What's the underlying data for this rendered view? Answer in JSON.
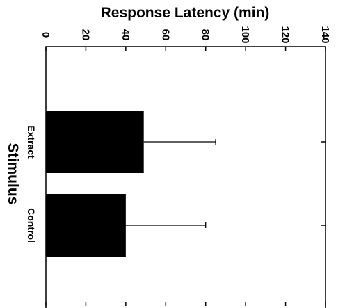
{
  "chart_data": {
    "type": "bar",
    "orientation": "horizontal",
    "title": "Response Latency (min)",
    "xlabel": "Stimulus",
    "ylabel": "Response Latency (min)",
    "categories": [
      "Extract",
      "Control"
    ],
    "values": [
      49,
      40
    ],
    "error_upper": [
      85,
      80
    ],
    "ylim": [
      0,
      140
    ],
    "yticks": [
      0,
      20,
      40,
      60,
      80,
      100,
      120,
      140
    ],
    "grid": false,
    "bar_color": "#000000"
  }
}
